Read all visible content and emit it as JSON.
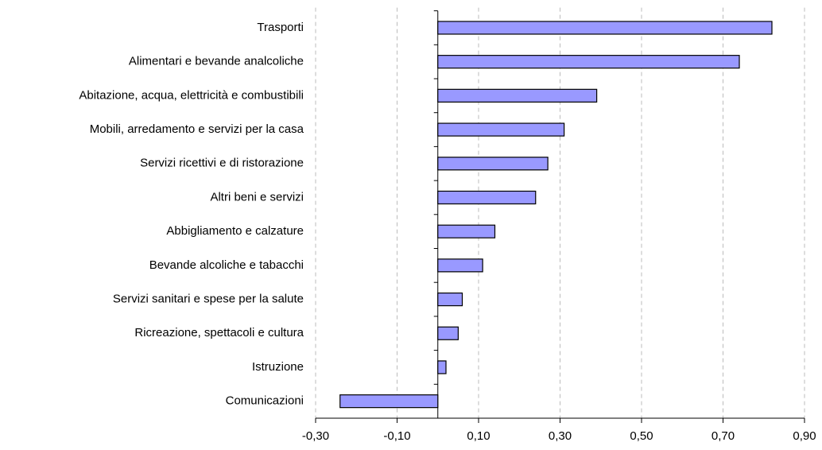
{
  "chart_data": {
    "type": "hbar",
    "categories": [
      "Trasporti",
      "Alimentari e bevande analcoliche",
      "Abitazione, acqua, elettricità e combustibili",
      "Mobili, arredamento e servizi per la casa",
      "Servizi ricettivi e di ristorazione",
      "Altri beni e servizi",
      "Abbigliamento e calzature",
      "Bevande alcoliche e tabacchi",
      "Servizi sanitari e spese per la salute",
      "Ricreazione, spettacoli e cultura",
      "Istruzione",
      "Comunicazioni"
    ],
    "values": [
      0.82,
      0.74,
      0.39,
      0.31,
      0.27,
      0.24,
      0.14,
      0.11,
      0.06,
      0.05,
      0.02,
      -0.24
    ],
    "color": "#9999ff",
    "xlim": [
      -0.3,
      0.9
    ],
    "xticks": [
      {
        "value": -0.3,
        "label": "-0,30"
      },
      {
        "value": -0.1,
        "label": "-0,10"
      },
      {
        "value": 0.1,
        "label": "0,10"
      },
      {
        "value": 0.3,
        "label": "0,30"
      },
      {
        "value": 0.5,
        "label": "0,50"
      },
      {
        "value": 0.7,
        "label": "0,70"
      },
      {
        "value": 0.9,
        "label": "0,90"
      }
    ],
    "grid": true
  }
}
